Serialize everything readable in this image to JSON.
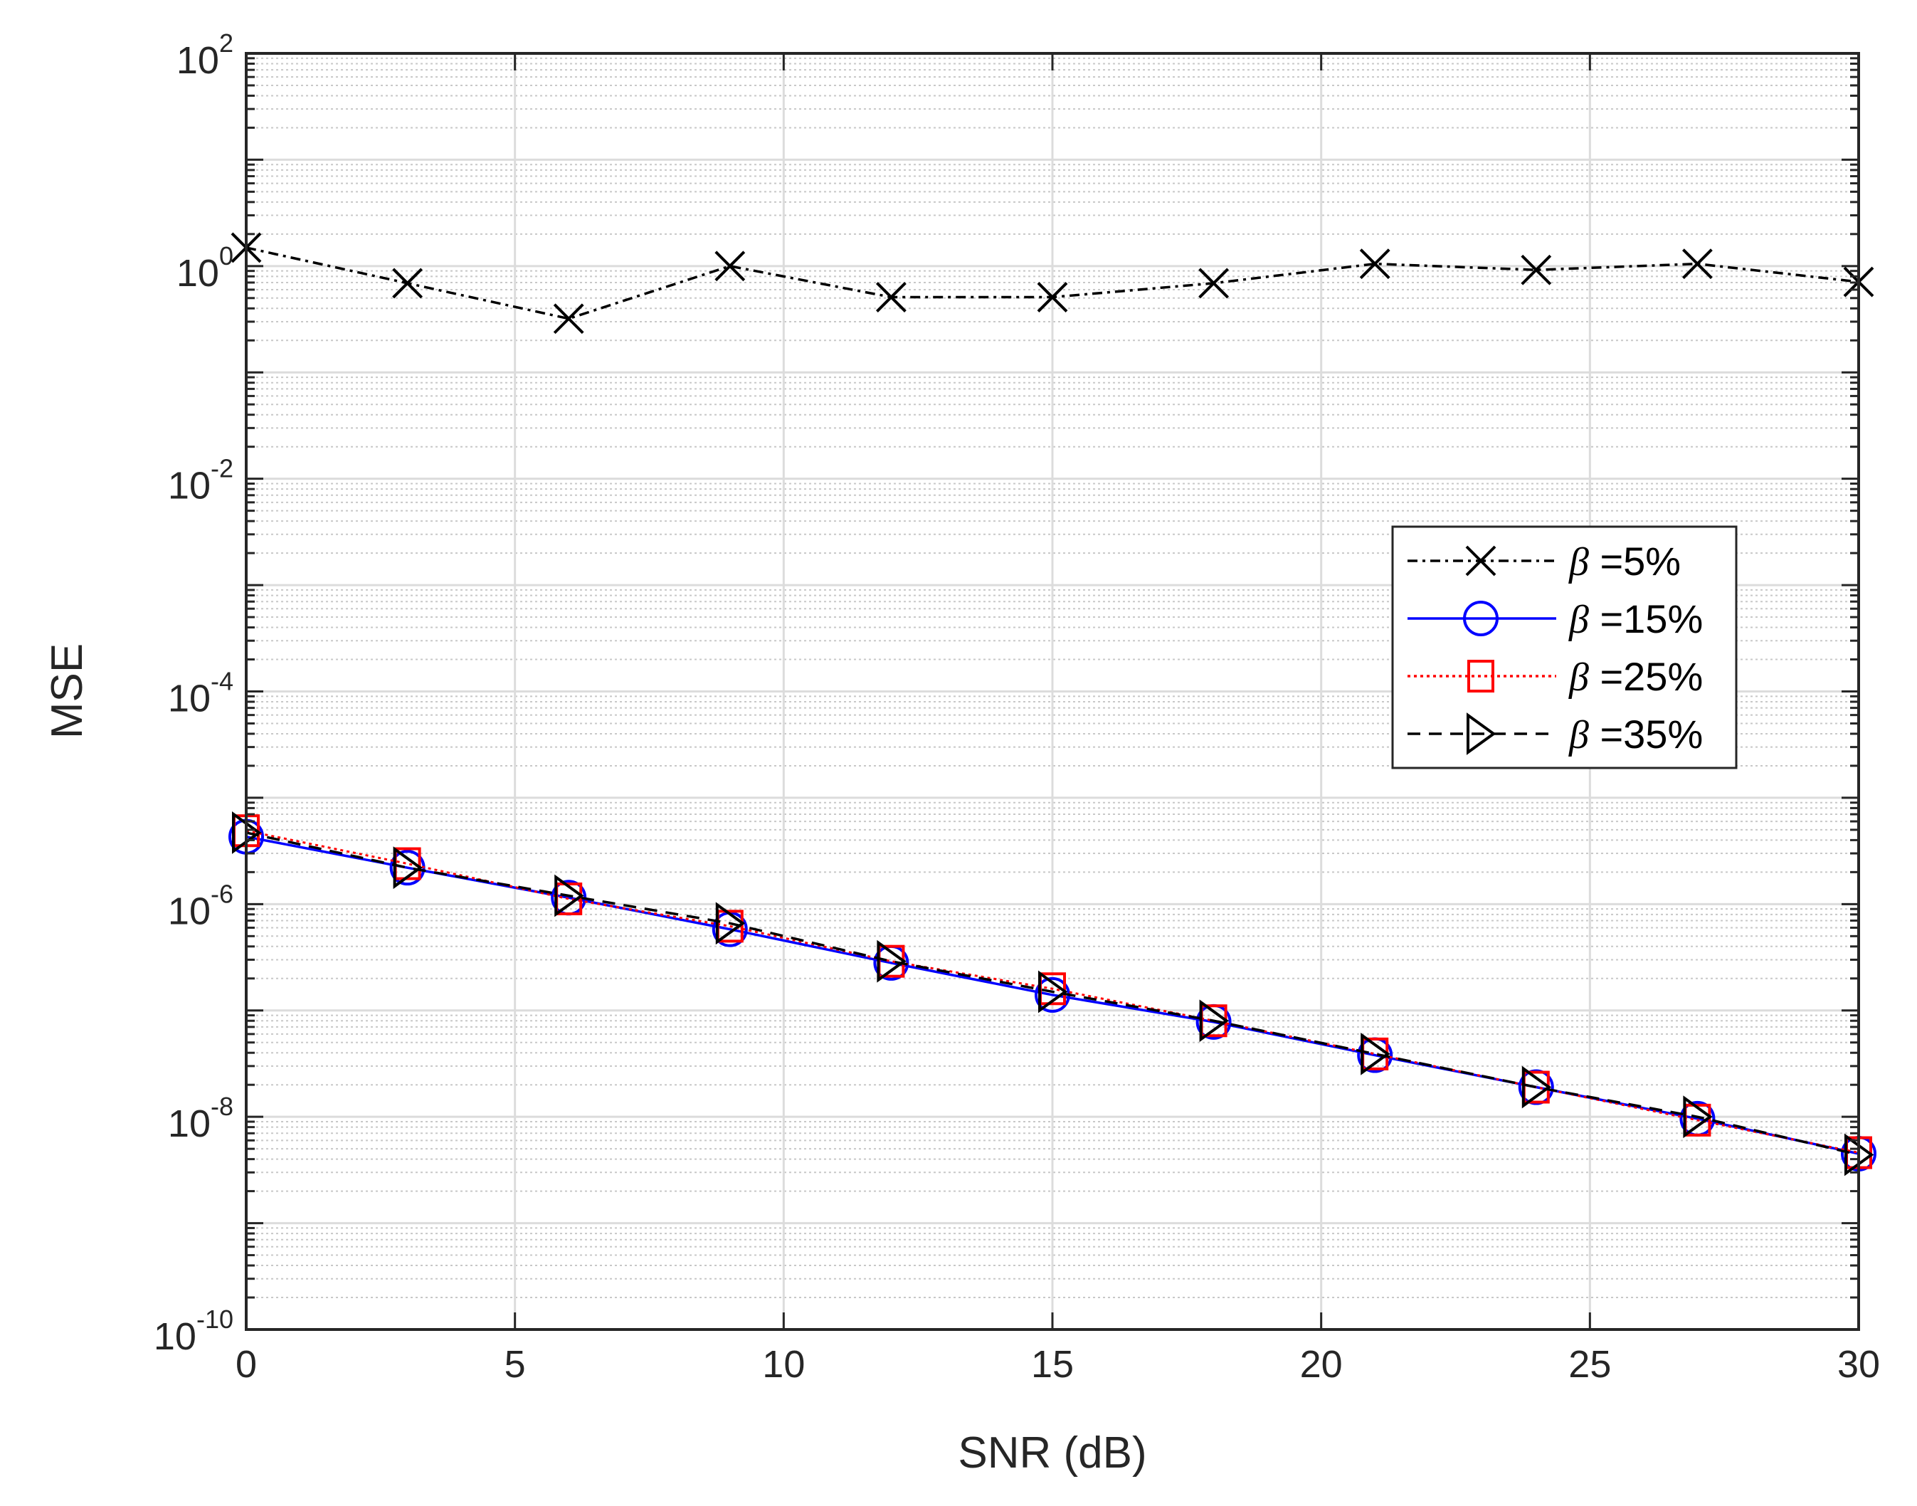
{
  "chart_data": {
    "type": "line",
    "title": "",
    "xlabel": "SNR (dB)",
    "ylabel": "MSE",
    "xlim": [
      0,
      30
    ],
    "ylim": [
      1e-10,
      100
    ],
    "yscale": "log",
    "grid": true,
    "legend_placement": "center-right",
    "x_ticks": [
      0,
      5,
      10,
      15,
      20,
      25,
      30
    ],
    "y_tick_base": "10",
    "y_tick_exponents": [
      -10,
      -8,
      -6,
      -4,
      -2,
      0,
      2
    ],
    "x": [
      0,
      3,
      6,
      9,
      12,
      15,
      18,
      21,
      24,
      27,
      30
    ],
    "series": [
      {
        "name": "β =5%",
        "legend_symbol": "β",
        "legend_text": " =5%",
        "color": "#000000",
        "line": "dashdot",
        "marker": "x",
        "values": [
          1.49,
          0.69,
          0.32,
          1.0,
          0.51,
          0.51,
          0.69,
          1.05,
          0.92,
          1.05,
          0.71
        ]
      },
      {
        "name": "β =15%",
        "legend_symbol": "β",
        "legend_text": " =15%",
        "color": "#0000ff",
        "line": "solid",
        "marker": "circle",
        "values": [
          4.3e-06,
          2.2e-06,
          1.15e-06,
          5.8e-07,
          2.8e-07,
          1.4e-07,
          7.8e-08,
          3.8e-08,
          1.9e-08,
          9.6e-09,
          4.5e-09
        ]
      },
      {
        "name": "β =25%",
        "legend_symbol": "β",
        "legend_text": " =25%",
        "color": "#ff0000",
        "line": "dotted",
        "marker": "square",
        "values": [
          4.9e-06,
          2.4e-06,
          1.12e-06,
          6.2e-07,
          2.9e-07,
          1.6e-07,
          8e-08,
          3.9e-08,
          1.9e-08,
          9.3e-09,
          4.6e-09
        ]
      },
      {
        "name": "β =35%",
        "legend_symbol": "β",
        "legend_text": " =35%",
        "color": "#000000",
        "line": "dashed",
        "marker": "triangle-right",
        "values": [
          4.7e-06,
          2.2e-06,
          1.2e-06,
          6.6e-07,
          2.9e-07,
          1.5e-07,
          8e-08,
          3.9e-08,
          1.9e-08,
          1e-08,
          4.4e-09
        ]
      }
    ]
  }
}
